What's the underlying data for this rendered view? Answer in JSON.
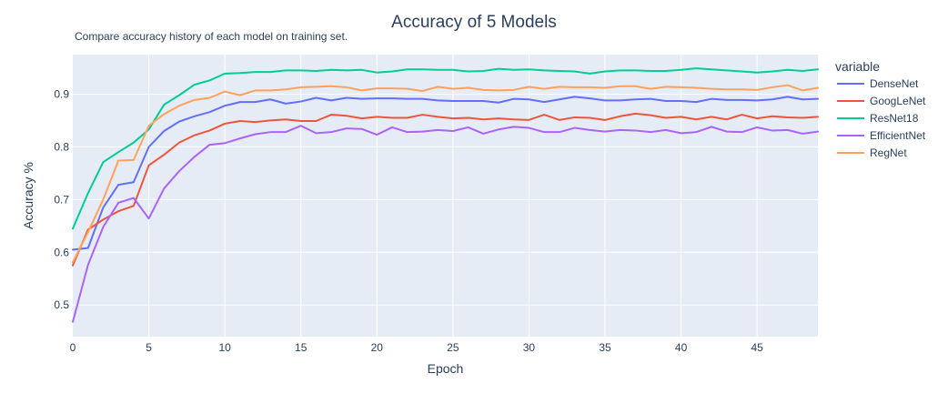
{
  "chart_data": {
    "type": "line",
    "title": "Accuracy of 5 Models",
    "subtitle": "Compare accuracy history of each model on training set.",
    "xlabel": "Epoch",
    "ylabel": "Accuracy %",
    "xlim": [
      0,
      49
    ],
    "ylim": [
      0.44,
      0.975
    ],
    "x_ticks": [
      0,
      5,
      10,
      15,
      20,
      25,
      30,
      35,
      40,
      45
    ],
    "y_ticks": [
      0.5,
      0.6,
      0.7,
      0.8,
      0.9
    ],
    "grid": true,
    "legend_title": "variable",
    "legend_position": "right",
    "x": [
      0,
      1,
      2,
      3,
      4,
      5,
      6,
      7,
      8,
      9,
      10,
      11,
      12,
      13,
      14,
      15,
      16,
      17,
      18,
      19,
      20,
      21,
      22,
      23,
      24,
      25,
      26,
      27,
      28,
      29,
      30,
      31,
      32,
      33,
      34,
      35,
      36,
      37,
      38,
      39,
      40,
      41,
      42,
      43,
      44,
      45,
      46,
      47,
      48,
      49
    ],
    "series": [
      {
        "name": "DenseNet",
        "color": "#636efa",
        "values": [
          0.605,
          0.608,
          0.685,
          0.728,
          0.733,
          0.8,
          0.83,
          0.848,
          0.858,
          0.866,
          0.878,
          0.885,
          0.885,
          0.89,
          0.882,
          0.886,
          0.893,
          0.888,
          0.893,
          0.891,
          0.892,
          0.892,
          0.891,
          0.891,
          0.888,
          0.887,
          0.887,
          0.887,
          0.884,
          0.891,
          0.89,
          0.885,
          0.89,
          0.895,
          0.892,
          0.888,
          0.888,
          0.89,
          0.891,
          0.887,
          0.887,
          0.885,
          0.891,
          0.889,
          0.889,
          0.888,
          0.89,
          0.895,
          0.89,
          0.891
        ]
      },
      {
        "name": "GoogLeNet",
        "color": "#ef553b",
        "values": [
          0.575,
          0.643,
          0.662,
          0.678,
          0.688,
          0.765,
          0.785,
          0.808,
          0.822,
          0.831,
          0.844,
          0.849,
          0.847,
          0.85,
          0.852,
          0.849,
          0.849,
          0.861,
          0.859,
          0.854,
          0.857,
          0.855,
          0.855,
          0.861,
          0.857,
          0.854,
          0.855,
          0.852,
          0.854,
          0.852,
          0.851,
          0.861,
          0.851,
          0.856,
          0.855,
          0.851,
          0.858,
          0.863,
          0.86,
          0.855,
          0.857,
          0.852,
          0.857,
          0.852,
          0.861,
          0.854,
          0.858,
          0.856,
          0.855,
          0.857
        ]
      },
      {
        "name": "ResNet18",
        "color": "#00cc96",
        "values": [
          0.645,
          0.712,
          0.771,
          0.79,
          0.808,
          0.833,
          0.88,
          0.898,
          0.918,
          0.926,
          0.939,
          0.94,
          0.942,
          0.942,
          0.945,
          0.945,
          0.944,
          0.946,
          0.945,
          0.946,
          0.941,
          0.943,
          0.947,
          0.947,
          0.946,
          0.946,
          0.943,
          0.944,
          0.948,
          0.946,
          0.947,
          0.945,
          0.944,
          0.943,
          0.939,
          0.943,
          0.945,
          0.945,
          0.944,
          0.944,
          0.946,
          0.949,
          0.947,
          0.945,
          0.943,
          0.941,
          0.943,
          0.946,
          0.944,
          0.947
        ]
      },
      {
        "name": "EfficientNet",
        "color": "#ab63fa",
        "values": [
          0.468,
          0.576,
          0.648,
          0.694,
          0.703,
          0.664,
          0.721,
          0.754,
          0.781,
          0.804,
          0.807,
          0.816,
          0.824,
          0.828,
          0.828,
          0.84,
          0.826,
          0.828,
          0.835,
          0.834,
          0.823,
          0.837,
          0.828,
          0.829,
          0.832,
          0.83,
          0.837,
          0.825,
          0.833,
          0.838,
          0.836,
          0.828,
          0.828,
          0.836,
          0.832,
          0.829,
          0.832,
          0.831,
          0.828,
          0.832,
          0.826,
          0.828,
          0.838,
          0.829,
          0.828,
          0.837,
          0.831,
          0.832,
          0.825,
          0.829
        ]
      },
      {
        "name": "RegNet",
        "color": "#ffa15a",
        "values": [
          0.581,
          0.638,
          0.7,
          0.774,
          0.775,
          0.84,
          0.862,
          0.878,
          0.889,
          0.893,
          0.905,
          0.898,
          0.907,
          0.907,
          0.909,
          0.913,
          0.914,
          0.915,
          0.913,
          0.907,
          0.911,
          0.911,
          0.91,
          0.906,
          0.914,
          0.91,
          0.912,
          0.908,
          0.907,
          0.908,
          0.914,
          0.91,
          0.914,
          0.913,
          0.913,
          0.912,
          0.915,
          0.915,
          0.91,
          0.914,
          0.913,
          0.912,
          0.91,
          0.909,
          0.909,
          0.908,
          0.913,
          0.917,
          0.907,
          0.912
        ]
      }
    ]
  }
}
